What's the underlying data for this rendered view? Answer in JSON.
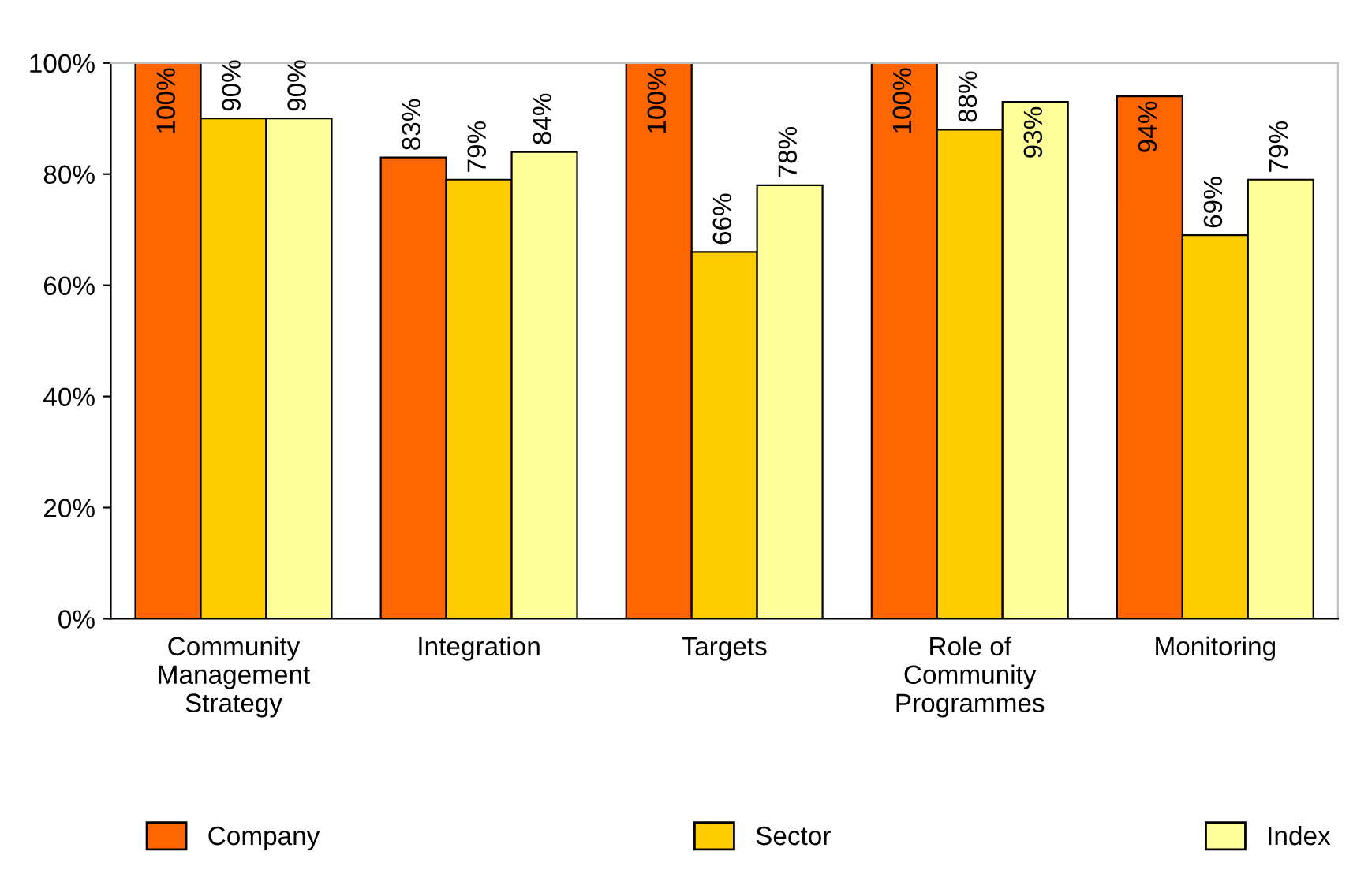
{
  "chart_data": {
    "type": "bar",
    "categories": [
      "Community Management Strategy",
      "Integration",
      "Targets",
      "Role of Community Programmes",
      "Monitoring"
    ],
    "series": [
      {
        "name": "Company",
        "color": "#ff6600",
        "values": [
          100,
          83,
          100,
          100,
          94
        ],
        "value_labels": [
          "100%",
          "83%",
          "100%",
          "100%",
          "94%"
        ]
      },
      {
        "name": "Sector",
        "color": "#ffcc00",
        "values": [
          90,
          79,
          66,
          88,
          69
        ],
        "value_labels": [
          "90%",
          "79%",
          "66%",
          "88%",
          "69%"
        ]
      },
      {
        "name": "Index",
        "color": "#ffff99",
        "values": [
          90,
          84,
          78,
          93,
          79
        ],
        "value_labels": [
          "90%",
          "84%",
          "78%",
          "93%",
          "79%"
        ]
      }
    ],
    "ylim": [
      0,
      100
    ],
    "yticks": [
      {
        "value": 0,
        "label": "0%"
      },
      {
        "value": 20,
        "label": "20%"
      },
      {
        "value": 40,
        "label": "40%"
      },
      {
        "value": 60,
        "label": "60%"
      },
      {
        "value": 80,
        "label": "80%"
      },
      {
        "value": 100,
        "label": "100%"
      }
    ],
    "grid": false,
    "legend": "bottom"
  }
}
